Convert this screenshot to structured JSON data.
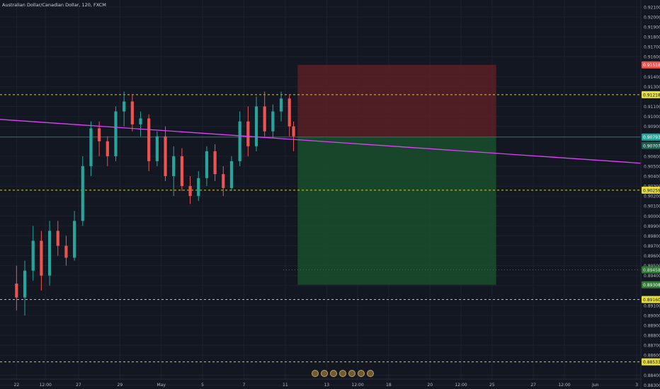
{
  "chart_title": "Australian Dollar/Canadian Dollar, 120, FXCM",
  "chart_data": {
    "type": "candlestick",
    "symbol": "Australian Dollar/Canadian Dollar",
    "interval": "120",
    "source": "FXCM",
    "y_axis": {
      "ylim": [
        0.8836,
        0.9217
      ],
      "ticks": [
        "0.92100",
        "0.92000",
        "0.91900",
        "0.91800",
        "0.91700",
        "0.91600",
        "0.91400",
        "0.91300",
        "0.91100",
        "0.91000",
        "0.90900",
        "0.90600",
        "0.90500",
        "0.90400",
        "0.90300",
        "0.90200",
        "0.90100",
        "0.90000",
        "0.89900",
        "0.89800",
        "0.89700",
        "0.89600",
        "0.89500",
        "0.89400",
        "0.89300",
        "0.89100",
        "0.89000",
        "0.88900",
        "0.88800",
        "0.88700",
        "0.88600",
        "0.88400",
        "0.88300"
      ]
    },
    "x_axis": {
      "ticks": [
        {
          "label": "22",
          "x": 0.0
        },
        {
          "label": "12:00",
          "x": 1.4
        },
        {
          "label": "27",
          "x": 3.0
        },
        {
          "label": "29",
          "x": 5.0
        },
        {
          "label": "May",
          "x": 7.0
        },
        {
          "label": "5",
          "x": 9.0
        },
        {
          "label": "7",
          "x": 11.0
        },
        {
          "label": "11",
          "x": 13.0
        },
        {
          "label": "13",
          "x": 15.0
        },
        {
          "label": "12:00",
          "x": 16.5
        },
        {
          "label": "18",
          "x": 18.0
        },
        {
          "label": "20",
          "x": 20.0
        },
        {
          "label": "12:00",
          "x": 21.5
        },
        {
          "label": "25",
          "x": 23.0
        },
        {
          "label": "27",
          "x": 25.0
        },
        {
          "label": "12:00",
          "x": 26.5
        },
        {
          "label": "Jun",
          "x": 28.0
        },
        {
          "label": "3",
          "x": 30.0
        }
      ],
      "xlim": [
        -0.8,
        30.2
      ]
    },
    "price_series": [
      {
        "x": 0.0,
        "o": 0.8932,
        "h": 0.895,
        "l": 0.8905,
        "c": 0.8918
      },
      {
        "x": 0.4,
        "o": 0.8918,
        "h": 0.8955,
        "l": 0.89,
        "c": 0.8945
      },
      {
        "x": 0.8,
        "o": 0.8945,
        "h": 0.899,
        "l": 0.8935,
        "c": 0.8975
      },
      {
        "x": 1.2,
        "o": 0.8975,
        "h": 0.8985,
        "l": 0.8925,
        "c": 0.894
      },
      {
        "x": 1.6,
        "o": 0.894,
        "h": 0.8995,
        "l": 0.893,
        "c": 0.8985
      },
      {
        "x": 2.0,
        "o": 0.8985,
        "h": 0.8995,
        "l": 0.896,
        "c": 0.897
      },
      {
        "x": 2.4,
        "o": 0.897,
        "h": 0.898,
        "l": 0.895,
        "c": 0.8958
      },
      {
        "x": 2.8,
        "o": 0.8958,
        "h": 0.9005,
        "l": 0.8955,
        "c": 0.8995
      },
      {
        "x": 3.2,
        "o": 0.8995,
        "h": 0.906,
        "l": 0.899,
        "c": 0.905
      },
      {
        "x": 3.6,
        "o": 0.905,
        "h": 0.9095,
        "l": 0.904,
        "c": 0.9088
      },
      {
        "x": 4.0,
        "o": 0.9088,
        "h": 0.9095,
        "l": 0.906,
        "c": 0.9075
      },
      {
        "x": 4.4,
        "o": 0.9075,
        "h": 0.908,
        "l": 0.905,
        "c": 0.906
      },
      {
        "x": 4.8,
        "o": 0.906,
        "h": 0.911,
        "l": 0.9055,
        "c": 0.9105
      },
      {
        "x": 5.2,
        "o": 0.9105,
        "h": 0.9125,
        "l": 0.909,
        "c": 0.9115
      },
      {
        "x": 5.6,
        "o": 0.9115,
        "h": 0.9122,
        "l": 0.9085,
        "c": 0.9092
      },
      {
        "x": 6.0,
        "o": 0.9092,
        "h": 0.9105,
        "l": 0.908,
        "c": 0.9098
      },
      {
        "x": 6.4,
        "o": 0.9098,
        "h": 0.9102,
        "l": 0.9045,
        "c": 0.9055
      },
      {
        "x": 6.8,
        "o": 0.9055,
        "h": 0.9085,
        "l": 0.905,
        "c": 0.908
      },
      {
        "x": 7.2,
        "o": 0.908,
        "h": 0.909,
        "l": 0.9035,
        "c": 0.904
      },
      {
        "x": 7.6,
        "o": 0.904,
        "h": 0.907,
        "l": 0.902,
        "c": 0.906
      },
      {
        "x": 8.0,
        "o": 0.906,
        "h": 0.9068,
        "l": 0.9025,
        "c": 0.903
      },
      {
        "x": 8.4,
        "o": 0.903,
        "h": 0.904,
        "l": 0.9012,
        "c": 0.902
      },
      {
        "x": 8.8,
        "o": 0.902,
        "h": 0.9045,
        "l": 0.9015,
        "c": 0.9038
      },
      {
        "x": 9.2,
        "o": 0.9038,
        "h": 0.907,
        "l": 0.903,
        "c": 0.9065
      },
      {
        "x": 9.6,
        "o": 0.9065,
        "h": 0.9072,
        "l": 0.9035,
        "c": 0.9042
      },
      {
        "x": 10.0,
        "o": 0.9042,
        "h": 0.905,
        "l": 0.902,
        "c": 0.9028
      },
      {
        "x": 10.4,
        "o": 0.9028,
        "h": 0.906,
        "l": 0.9025,
        "c": 0.9055
      },
      {
        "x": 10.8,
        "o": 0.9055,
        "h": 0.9105,
        "l": 0.905,
        "c": 0.9095
      },
      {
        "x": 11.2,
        "o": 0.9095,
        "h": 0.911,
        "l": 0.906,
        "c": 0.907
      },
      {
        "x": 11.6,
        "o": 0.907,
        "h": 0.912,
        "l": 0.9065,
        "c": 0.911
      },
      {
        "x": 12.0,
        "o": 0.911,
        "h": 0.9125,
        "l": 0.908,
        "c": 0.9085
      },
      {
        "x": 12.4,
        "o": 0.9085,
        "h": 0.9112,
        "l": 0.9078,
        "c": 0.9105
      },
      {
        "x": 12.8,
        "o": 0.9105,
        "h": 0.9125,
        "l": 0.9095,
        "c": 0.9118
      },
      {
        "x": 13.2,
        "o": 0.9118,
        "h": 0.9122,
        "l": 0.908,
        "c": 0.909
      },
      {
        "x": 13.4,
        "o": 0.909,
        "h": 0.9095,
        "l": 0.9065,
        "c": 0.908
      }
    ],
    "series": [
      {
        "type": "trendline",
        "color": "#e040fb",
        "points": [
          {
            "x": -0.8,
            "y": 0.9097
          },
          {
            "x": 30.2,
            "y": 0.9053
          }
        ]
      }
    ],
    "horizontal_lines": [
      {
        "y": 0.91218,
        "label": "0.91218",
        "style": "dashed",
        "color": "#d4cc3a"
      },
      {
        "y": 0.90259,
        "label": "0.90259",
        "style": "dashed",
        "color": "#d4cc3a"
      },
      {
        "y": 0.89458,
        "label": "0.89458",
        "style": "dotted",
        "color": "#555a66"
      },
      {
        "y": 0.8916,
        "label": "0.89160",
        "style": "dashed",
        "color": "#d4cc3a"
      },
      {
        "y": 0.88533,
        "label": "0.88533",
        "style": "dashed",
        "color": "#d4cc3a"
      },
      {
        "y": 0.90793,
        "label": "0.90793",
        "style": "solid",
        "color": "#1e7d6e"
      }
    ],
    "position_tool": {
      "x_start": 13.6,
      "x_end": 23.2,
      "entry": 0.90793,
      "stop": 0.91518,
      "target": 0.89308,
      "stop_label": "0.91518",
      "target_label": "0.89308",
      "current_label": "0.90707"
    },
    "colors": {
      "up": "#26a69a",
      "down": "#ef5350",
      "profit_zone": "#1a4f2b",
      "loss_zone": "#5a2026",
      "grid": "#1e222d",
      "axis_text": "#b2b5be"
    }
  }
}
